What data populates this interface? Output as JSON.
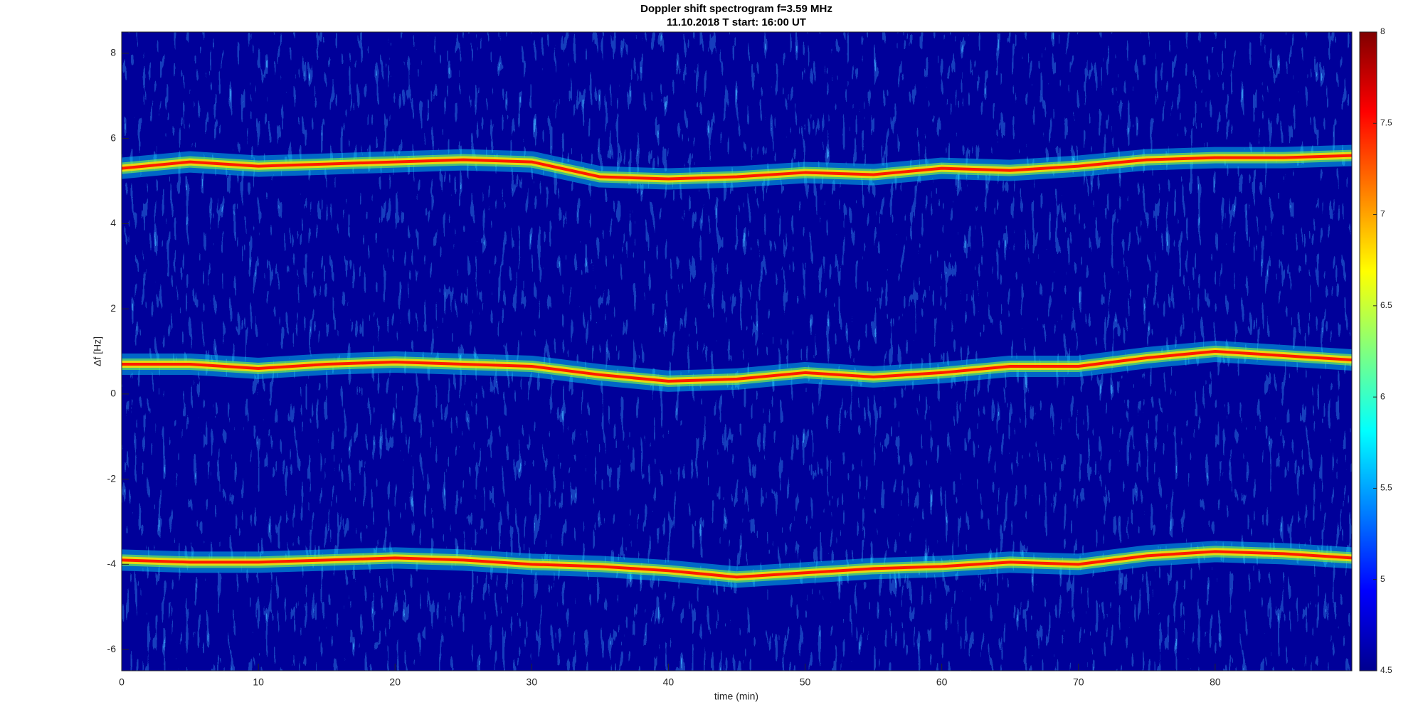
{
  "chart_data": {
    "type": "spectrogram",
    "title": "Doppler shift spectrogram f=3.59 MHz",
    "subtitle": "11.10.2018   T start: 16:00 UT",
    "xlabel": "time (min)",
    "ylabel": "Δf [Hz]",
    "xlim": [
      0,
      90
    ],
    "xticks": [
      0,
      10,
      20,
      30,
      40,
      50,
      60,
      70,
      80
    ],
    "ylim": [
      -6.5,
      8.5
    ],
    "yticks": [
      -6,
      -4,
      -2,
      0,
      2,
      4,
      6,
      8
    ],
    "colormap": "jet",
    "clim": [
      4.5,
      8
    ],
    "cticks": [
      4.5,
      5,
      5.5,
      6,
      6.5,
      7,
      7.5,
      8
    ],
    "x": [
      0,
      5,
      10,
      15,
      20,
      25,
      30,
      35,
      40,
      45,
      50,
      55,
      60,
      65,
      70,
      75,
      80,
      85,
      90
    ],
    "series": [
      {
        "color": "#ff1a00",
        "values": [
          5.3,
          5.45,
          5.35,
          5.4,
          5.45,
          5.5,
          5.45,
          5.1,
          5.05,
          5.1,
          5.2,
          5.15,
          5.3,
          5.25,
          5.35,
          5.5,
          5.55,
          5.55,
          5.6
        ]
      },
      {
        "color": "#ff1a00",
        "values": [
          0.7,
          0.7,
          0.6,
          0.7,
          0.75,
          0.7,
          0.65,
          0.45,
          0.3,
          0.35,
          0.5,
          0.4,
          0.5,
          0.65,
          0.65,
          0.85,
          1.0,
          0.9,
          0.8
        ]
      },
      {
        "color": "#ff1a00",
        "values": [
          -3.9,
          -3.95,
          -3.95,
          -3.9,
          -3.85,
          -3.9,
          -4.0,
          -4.05,
          -4.15,
          -4.3,
          -4.2,
          -4.1,
          -4.05,
          -3.95,
          -4.0,
          -3.8,
          -3.7,
          -3.75,
          -3.85
        ]
      }
    ]
  }
}
